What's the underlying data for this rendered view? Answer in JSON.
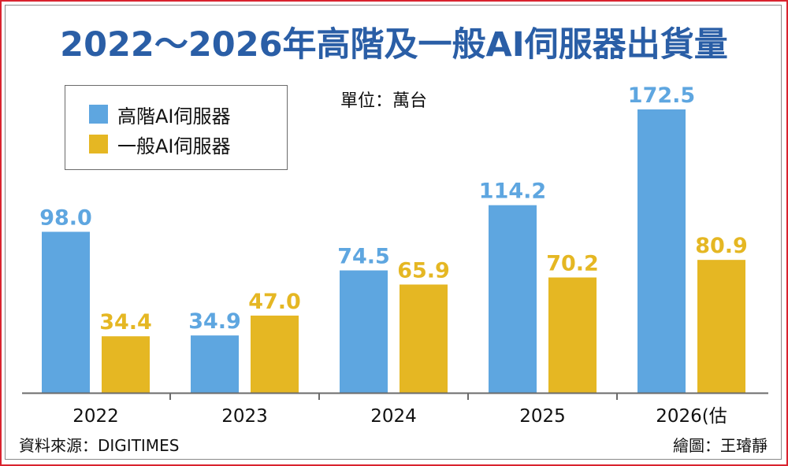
{
  "chart_data": {
    "type": "bar",
    "title": "2022～2026年高階及一般AI伺服器出貨量",
    "unit": "單位：萬台",
    "categories": [
      "2022",
      "2023",
      "2024",
      "2025",
      "2026(估"
    ],
    "series": [
      {
        "name": "高階AI伺服器",
        "color": "#5ea6e0",
        "values": [
          98.0,
          34.9,
          74.5,
          114.2,
          172.5
        ],
        "labels": [
          "98.0",
          "34.9",
          "74.5",
          "114.2",
          "172.5"
        ]
      },
      {
        "name": "一般AI伺服器",
        "color": "#e5b723",
        "values": [
          34.4,
          47.0,
          65.9,
          70.2,
          80.9
        ],
        "labels": [
          "34.4",
          "47.0",
          "65.9",
          "70.2",
          "80.9"
        ]
      }
    ],
    "ylim": [
      0,
      172.5
    ],
    "grid": false,
    "legend_position": "top-left"
  },
  "footer": {
    "source": "資料來源：DIGITIMES",
    "credit": "繪圖：王璿靜"
  }
}
